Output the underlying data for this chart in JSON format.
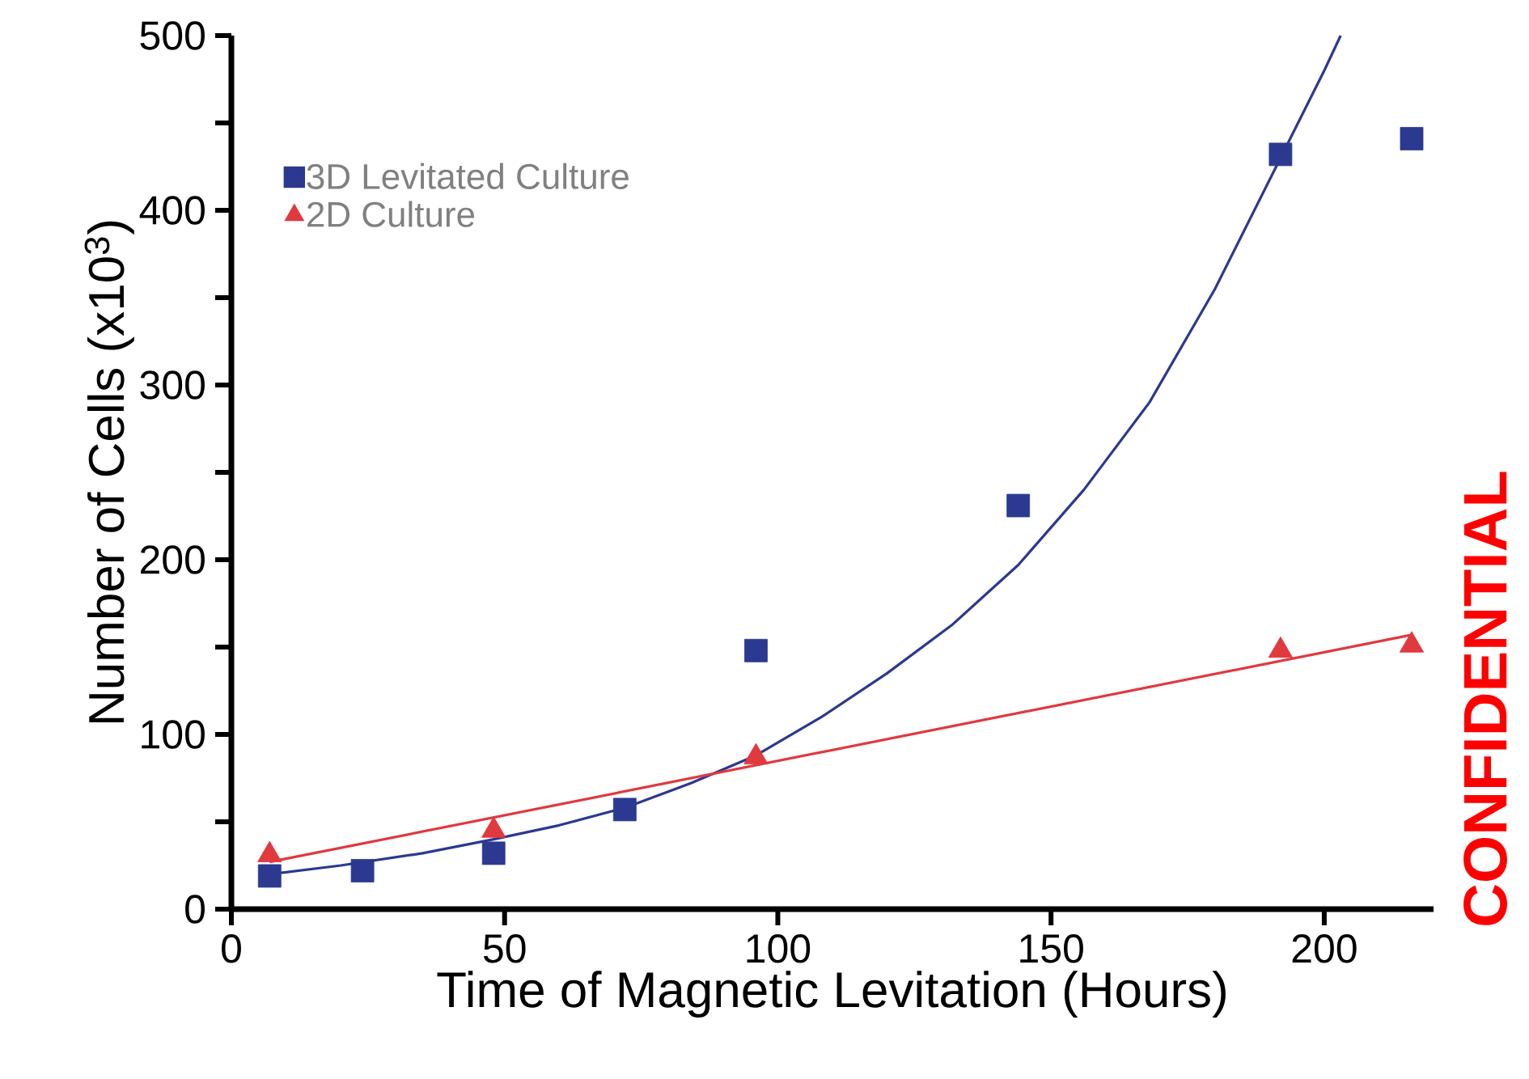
{
  "chart_data": {
    "type": "scatter",
    "xlabel": "Time of Magnetic Levitation (Hours)",
    "ylabel": "Number of Cells (x10$^{3}$)",
    "xlim": [
      0,
      220
    ],
    "ylim": [
      0,
      500
    ],
    "xticks": [
      0,
      50,
      100,
      150,
      200
    ],
    "yticks": [
      0,
      {
        "value": 50,
        "label": null
      },
      100,
      {
        "value": 150,
        "label": null
      },
      200,
      {
        "value": 250,
        "label": null
      },
      300,
      {
        "value": 350,
        "label": null
      },
      400,
      {
        "value": 450,
        "label": null
      },
      500
    ],
    "grid": false,
    "legend": "top left",
    "annotations": [
      "CONFIDENTIAL"
    ],
    "series": [
      {
        "name": "3D Levitated Culture",
        "marker": "square",
        "color": "#2b3990",
        "x": [
          7,
          24,
          48,
          72,
          96,
          144,
          192,
          216
        ],
        "values": [
          19,
          22,
          32,
          57,
          148,
          231,
          432,
          441
        ]
      },
      {
        "name": "2D Culture",
        "marker": "triangle",
        "color": "#e0393e",
        "x": [
          7,
          48,
          96,
          192,
          216
        ],
        "values": [
          31,
          45,
          87,
          148,
          151
        ]
      },
      {
        "type": "line",
        "line_style": "solid",
        "color": "#2b3990",
        "x": [
          7,
          20,
          35,
          48,
          60,
          72,
          84,
          96,
          108,
          120,
          132,
          144,
          156,
          168,
          180,
          192,
          200,
          203
        ],
        "values": [
          20,
          25,
          32,
          40,
          48,
          58,
          72,
          88,
          110,
          135,
          163,
          197,
          240,
          290,
          355,
          430,
          480,
          500
        ]
      },
      {
        "type": "line",
        "line_style": "solid",
        "color": "#e0393e",
        "x": [
          7,
          216
        ],
        "values": [
          27,
          157
        ]
      }
    ]
  }
}
